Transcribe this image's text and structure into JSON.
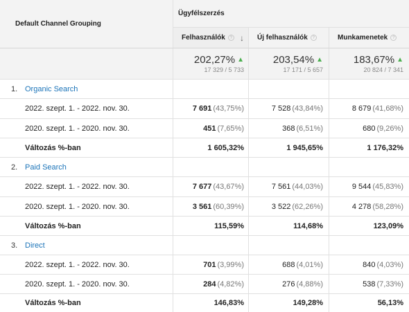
{
  "header": {
    "dimension": "Default Channel Grouping",
    "group": "Ügyfélszerzés",
    "columns": [
      {
        "label": "Felhasználók",
        "help": "?",
        "sort_icon": "arrow-down-icon"
      },
      {
        "label": "Új felhasználók",
        "help": "?"
      },
      {
        "label": "Munkamenetek",
        "help": "?"
      }
    ]
  },
  "totals": [
    {
      "value": "202,27%",
      "sub": "17 329 / 5 733"
    },
    {
      "value": "203,54%",
      "sub": "17 171 / 5 657"
    },
    {
      "value": "183,67%",
      "sub": "20 824 / 7 341"
    }
  ],
  "up_arrow": "▲",
  "groups": [
    {
      "index": "1.",
      "name": "Organic Search",
      "rows": [
        {
          "label": "2022. szept. 1. - 2022. nov. 30.",
          "c1": "7 691",
          "c1p": "(43,75%)",
          "c2": "7 528",
          "c2p": "(43,84%)",
          "c3": "8 679",
          "c3p": "(41,68%)"
        },
        {
          "label": "2020. szept. 1. - 2020. nov. 30.",
          "c1": "451",
          "c1p": "(7,65%)",
          "c2": "368",
          "c2p": "(6,51%)",
          "c3": "680",
          "c3p": "(9,26%)"
        }
      ],
      "change": {
        "label": "Változás %-ban",
        "c1": "1 605,32%",
        "c2": "1 945,65%",
        "c3": "1 176,32%"
      }
    },
    {
      "index": "2.",
      "name": "Paid Search",
      "rows": [
        {
          "label": "2022. szept. 1. - 2022. nov. 30.",
          "c1": "7 677",
          "c1p": "(43,67%)",
          "c2": "7 561",
          "c2p": "(44,03%)",
          "c3": "9 544",
          "c3p": "(45,83%)"
        },
        {
          "label": "2020. szept. 1. - 2020. nov. 30.",
          "c1": "3 561",
          "c1p": "(60,39%)",
          "c2": "3 522",
          "c2p": "(62,26%)",
          "c3": "4 278",
          "c3p": "(58,28%)"
        }
      ],
      "change": {
        "label": "Változás %-ban",
        "c1": "115,59%",
        "c2": "114,68%",
        "c3": "123,09%"
      }
    },
    {
      "index": "3.",
      "name": "Direct",
      "rows": [
        {
          "label": "2022. szept. 1. - 2022. nov. 30.",
          "c1": "701",
          "c1p": "(3,99%)",
          "c2": "688",
          "c2p": "(4,01%)",
          "c3": "840",
          "c3p": "(4,03%)"
        },
        {
          "label": "2020. szept. 1. - 2020. nov. 30.",
          "c1": "284",
          "c1p": "(4,82%)",
          "c2": "276",
          "c2p": "(4,88%)",
          "c3": "538",
          "c3p": "(7,33%)"
        }
      ],
      "change": {
        "label": "Változás %-ban",
        "c1": "146,83%",
        "c2": "149,28%",
        "c3": "56,13%"
      }
    }
  ]
}
